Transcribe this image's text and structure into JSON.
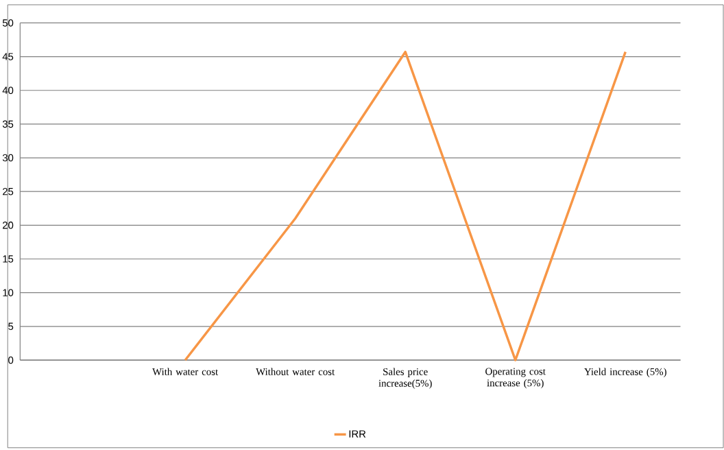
{
  "chart_data": {
    "type": "line",
    "categories": [
      null,
      "With water cost",
      "Without water cost",
      "Sales price increase(5%)",
      "Operating cost increase (5%)",
      "Yield increase (5%)"
    ],
    "series": [
      {
        "name": "IRR",
        "color": "#f79646",
        "values": [
          null,
          0,
          21,
          45.7,
          0,
          45.7
        ]
      }
    ],
    "ylim": [
      0,
      50
    ],
    "yticks": [
      0,
      5,
      10,
      15,
      20,
      25,
      30,
      35,
      40,
      45,
      50
    ],
    "grid": "y",
    "legend": "bottom",
    "marker": "none",
    "line_style": "solid"
  }
}
